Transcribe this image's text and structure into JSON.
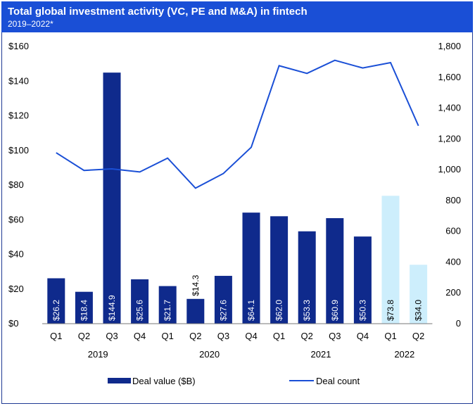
{
  "chart_data": {
    "type": "bar",
    "title": "Total global investment activity (VC, PE and M&A) in fintech",
    "subtitle": "2019–2022*",
    "categories": [
      "Q1",
      "Q2",
      "Q3",
      "Q4",
      "Q1",
      "Q2",
      "Q3",
      "Q4",
      "Q1",
      "Q2",
      "Q3",
      "Q4",
      "Q1",
      "Q2"
    ],
    "years": [
      {
        "label": "2019",
        "from": 0,
        "to": 3
      },
      {
        "label": "2020",
        "from": 4,
        "to": 7
      },
      {
        "label": "2021",
        "from": 8,
        "to": 11
      },
      {
        "label": "2022",
        "from": 12,
        "to": 13
      }
    ],
    "series": [
      {
        "name": "Deal value ($B)",
        "type": "bar",
        "axis": "left",
        "values": [
          26.2,
          18.4,
          144.9,
          25.6,
          21.7,
          14.3,
          27.6,
          64.1,
          62.0,
          53.3,
          60.9,
          50.3,
          73.8,
          34.0
        ],
        "labels": [
          "$26.2",
          "$18.4",
          "$144.9",
          "$25.6",
          "$21.7",
          "$14.3",
          "$27.6",
          "$64.1",
          "$62.0",
          "$53.3",
          "$60.9",
          "$50.3",
          "$73.8",
          "$34.0"
        ],
        "color": "#0f2a8c",
        "highlight_color": "#cdeefc",
        "highlight_indices": [
          12,
          13
        ]
      },
      {
        "name": "Deal count",
        "type": "line",
        "axis": "right",
        "values": [
          1110,
          995,
          1005,
          985,
          1075,
          880,
          975,
          1145,
          1675,
          1625,
          1710,
          1660,
          1695,
          1285
        ],
        "color": "#1a4fd6"
      }
    ],
    "left_axis": {
      "min": 0,
      "max": 160,
      "ticks": [
        0,
        20,
        40,
        60,
        80,
        100,
        120,
        140,
        160
      ],
      "tick_labels": [
        "$0",
        "$20",
        "$40",
        "$60",
        "$80",
        "$100",
        "$120",
        "$140",
        "$160"
      ]
    },
    "right_axis": {
      "min": 0,
      "max": 1800,
      "ticks": [
        0,
        200,
        400,
        600,
        800,
        1000,
        1200,
        1400,
        1600,
        1800
      ],
      "tick_labels": [
        "0",
        "200",
        "400",
        "600",
        "800",
        "1,000",
        "1,200",
        "1,400",
        "1,600",
        "1,800"
      ]
    },
    "legend_position": "bottom"
  }
}
